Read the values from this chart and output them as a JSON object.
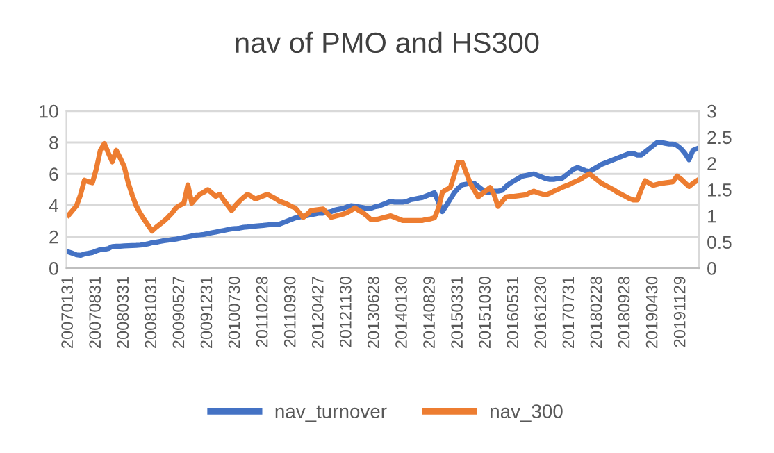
{
  "chart_data": {
    "type": "line",
    "title": "nav of PMO and HS300",
    "categories": [
      "20070131",
      null,
      null,
      null,
      null,
      null,
      null,
      "20070831",
      null,
      null,
      null,
      null,
      null,
      null,
      "20080331",
      null,
      null,
      null,
      null,
      null,
      null,
      "20081031",
      null,
      null,
      null,
      null,
      null,
      null,
      "20090527",
      null,
      null,
      null,
      null,
      null,
      null,
      "20091231",
      null,
      null,
      null,
      null,
      null,
      null,
      "20100730",
      null,
      null,
      null,
      null,
      null,
      null,
      "20110228",
      null,
      null,
      null,
      null,
      null,
      null,
      "20110930",
      null,
      null,
      null,
      null,
      null,
      null,
      "20120427",
      null,
      null,
      null,
      null,
      null,
      null,
      "20121130",
      null,
      null,
      null,
      null,
      null,
      null,
      "20130628",
      null,
      null,
      null,
      null,
      null,
      null,
      "20140130",
      null,
      null,
      null,
      null,
      null,
      null,
      "20140829",
      null,
      null,
      null,
      null,
      null,
      null,
      "20150331",
      null,
      null,
      null,
      null,
      null,
      null,
      "20151030",
      null,
      null,
      null,
      null,
      null,
      null,
      "20160531",
      null,
      null,
      null,
      null,
      null,
      null,
      "20161230",
      null,
      null,
      null,
      null,
      null,
      null,
      "20170731",
      null,
      null,
      null,
      null,
      null,
      null,
      "20180228",
      null,
      null,
      null,
      null,
      null,
      null,
      "20180928",
      null,
      null,
      null,
      null,
      null,
      null,
      "20190430",
      null,
      null,
      null,
      null,
      null,
      null,
      "20191129",
      null,
      null,
      null,
      null
    ],
    "series": [
      {
        "name": "nav_turnover",
        "color": "#4472c4",
        "values": [
          1.03,
          0.95,
          0.85,
          0.82,
          0.9,
          0.95,
          1.0,
          1.1,
          1.18,
          1.2,
          1.25,
          1.38,
          1.4,
          1.4,
          1.42,
          1.43,
          1.44,
          1.45,
          1.47,
          1.5,
          1.55,
          1.62,
          1.65,
          1.7,
          1.75,
          1.78,
          1.82,
          1.85,
          1.9,
          1.95,
          2.0,
          2.05,
          2.1,
          2.12,
          2.15,
          2.2,
          2.25,
          2.3,
          2.35,
          2.4,
          2.45,
          2.5,
          2.52,
          2.55,
          2.6,
          2.62,
          2.65,
          2.68,
          2.7,
          2.72,
          2.75,
          2.78,
          2.8,
          2.8,
          2.9,
          3.0,
          3.1,
          3.2,
          3.25,
          3.3,
          3.35,
          3.4,
          3.45,
          3.5,
          3.5,
          3.55,
          3.6,
          3.7,
          3.75,
          3.8,
          3.9,
          3.97,
          3.95,
          3.9,
          3.85,
          3.8,
          3.8,
          3.9,
          3.95,
          4.05,
          4.15,
          4.26,
          4.2,
          4.2,
          4.2,
          4.25,
          4.35,
          4.4,
          4.45,
          4.5,
          4.6,
          4.7,
          4.8,
          4.2,
          3.6,
          4.0,
          4.4,
          4.8,
          5.1,
          5.3,
          5.35,
          5.4,
          5.4,
          5.2,
          5.0,
          4.8,
          4.85,
          4.9,
          4.9,
          4.95,
          5.2,
          5.4,
          5.55,
          5.7,
          5.85,
          5.9,
          5.95,
          6.0,
          5.9,
          5.8,
          5.7,
          5.65,
          5.65,
          5.7,
          5.7,
          5.9,
          6.1,
          6.3,
          6.4,
          6.3,
          6.2,
          6.15,
          6.3,
          6.45,
          6.6,
          6.7,
          6.8,
          6.9,
          7.0,
          7.1,
          7.2,
          7.3,
          7.3,
          7.2,
          7.2,
          7.4,
          7.6,
          7.8,
          8.0,
          8.0,
          7.95,
          7.9,
          7.9,
          7.8,
          7.6,
          7.3,
          6.9,
          7.5,
          7.6
        ]
      },
      {
        "name": "nav_300",
        "color": "#ed7d31",
        "axis": "y2",
        "values": [
          1.01,
          1.1,
          1.19,
          1.4,
          1.68,
          1.65,
          1.63,
          1.9,
          2.25,
          2.38,
          2.2,
          2.03,
          2.25,
          2.1,
          1.94,
          1.63,
          1.4,
          1.19,
          1.05,
          0.93,
          0.82,
          0.71,
          0.78,
          0.84,
          0.9,
          0.97,
          1.05,
          1.15,
          1.2,
          1.24,
          1.59,
          1.24,
          1.33,
          1.41,
          1.45,
          1.5,
          1.44,
          1.37,
          1.41,
          1.3,
          1.2,
          1.1,
          1.2,
          1.28,
          1.35,
          1.41,
          1.37,
          1.32,
          1.35,
          1.38,
          1.41,
          1.37,
          1.33,
          1.28,
          1.25,
          1.22,
          1.18,
          1.15,
          1.06,
          0.97,
          1.03,
          1.1,
          1.11,
          1.12,
          1.13,
          1.05,
          0.97,
          0.99,
          1.01,
          1.03,
          1.06,
          1.1,
          1.15,
          1.1,
          1.06,
          1.0,
          0.93,
          0.93,
          0.94,
          0.96,
          0.98,
          1.0,
          0.97,
          0.94,
          0.91,
          0.91,
          0.91,
          0.91,
          0.91,
          0.91,
          0.93,
          0.94,
          0.96,
          1.14,
          1.45,
          1.5,
          1.54,
          1.78,
          2.02,
          2.02,
          1.82,
          1.62,
          1.49,
          1.36,
          1.42,
          1.48,
          1.54,
          1.4,
          1.18,
          1.27,
          1.36,
          1.37,
          1.37,
          1.38,
          1.39,
          1.4,
          1.44,
          1.47,
          1.44,
          1.42,
          1.4,
          1.43,
          1.47,
          1.5,
          1.54,
          1.57,
          1.6,
          1.64,
          1.67,
          1.71,
          1.76,
          1.8,
          1.74,
          1.68,
          1.62,
          1.58,
          1.54,
          1.5,
          1.45,
          1.41,
          1.37,
          1.33,
          1.3,
          1.3,
          1.5,
          1.67,
          1.62,
          1.58,
          1.6,
          1.62,
          1.63,
          1.64,
          1.65,
          1.76,
          1.7,
          1.63,
          1.56,
          1.62,
          1.67
        ]
      }
    ],
    "ylim": [
      0,
      10
    ],
    "yticks": [
      0,
      2,
      4,
      6,
      8,
      10
    ],
    "y2lim": [
      0,
      3
    ],
    "y2ticks": [
      0,
      0.5,
      1,
      1.5,
      2,
      2.5,
      3
    ],
    "grid": "y",
    "legend": "bottom",
    "marker": "none",
    "line_style": "solid"
  }
}
